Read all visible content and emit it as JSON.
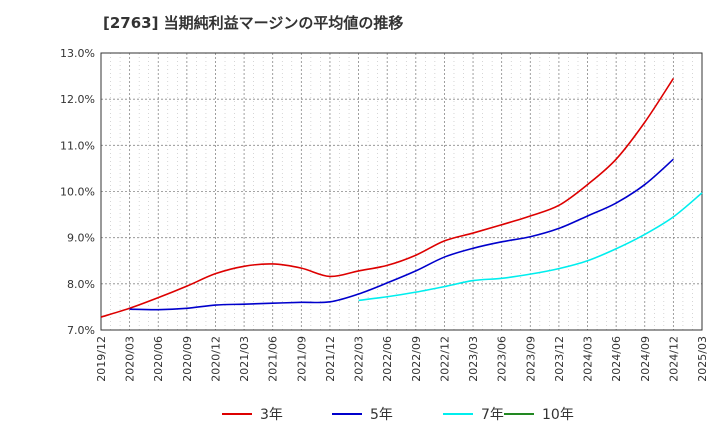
{
  "chart_data": {
    "type": "line",
    "title": "[2763]  当期純利益マージンの平均値の推移",
    "xlabel": "",
    "ylabel": "",
    "x_ticks": [
      "2019/12",
      "2020/03",
      "2020/06",
      "2020/09",
      "2020/12",
      "2021/03",
      "2021/06",
      "2021/09",
      "2021/12",
      "2022/03",
      "2022/06",
      "2022/09",
      "2022/12",
      "2023/03",
      "2023/06",
      "2023/09",
      "2023/12",
      "2024/03",
      "2024/06",
      "2024/09",
      "2024/12",
      "2025/03"
    ],
    "y_ticks": [
      "7.0%",
      "8.0%",
      "9.0%",
      "10.0%",
      "11.0%",
      "12.0%",
      "13.0%"
    ],
    "ylim": [
      7.0,
      13.0
    ],
    "grid": true,
    "legend_position": "bottom",
    "series": [
      {
        "name": "3年",
        "color": "#dd0000",
        "start_index": 0,
        "values": [
          7.28,
          7.47,
          7.7,
          7.95,
          8.22,
          8.38,
          8.43,
          8.34,
          8.16,
          8.28,
          8.4,
          8.62,
          8.93,
          9.1,
          9.28,
          9.47,
          9.7,
          10.15,
          10.7,
          11.5,
          12.45
        ]
      },
      {
        "name": "5年",
        "color": "#0000cc",
        "start_index": 1,
        "values": [
          7.45,
          7.44,
          7.47,
          7.54,
          7.56,
          7.58,
          7.6,
          7.61,
          7.78,
          8.02,
          8.28,
          8.58,
          8.77,
          8.91,
          9.02,
          9.2,
          9.47,
          9.75,
          10.15,
          10.7
        ]
      },
      {
        "name": "7年",
        "color": "#00eeee",
        "start_index": 9,
        "values": [
          7.64,
          7.72,
          7.82,
          7.94,
          8.07,
          8.12,
          8.21,
          8.33,
          8.5,
          8.76,
          9.07,
          9.45,
          9.97
        ]
      },
      {
        "name": "10年",
        "color": "#228822",
        "start_index": 21,
        "values": []
      }
    ]
  }
}
